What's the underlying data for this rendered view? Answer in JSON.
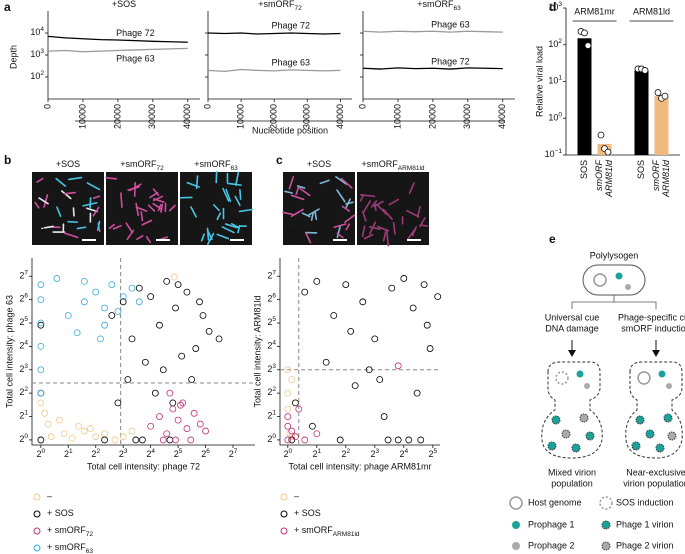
{
  "panel_labels": [
    "a",
    "b",
    "c",
    "d",
    "e"
  ],
  "panel_a": {
    "ylabel": "Depth",
    "xlabel": "Nucleotide position"
  },
  "chart_data": [
    {
      "type": "line",
      "title": {
        "text": "+SOS"
      },
      "x": [
        0,
        5000,
        10000,
        15000,
        20000,
        25000,
        30000,
        35000,
        40000
      ],
      "xlim": [
        0,
        43500
      ],
      "xticks": [
        0,
        10000,
        20000,
        30000,
        40000
      ],
      "ylim": [
        10,
        100000
      ],
      "log_scale": true,
      "yticks": [
        {
          "value": 100,
          "label": "10",
          "power": "2"
        },
        {
          "value": 1000,
          "label": "10",
          "power": "3"
        },
        {
          "value": 10000,
          "label": "10",
          "power": "4"
        }
      ],
      "series": [
        {
          "name": "Phage 72",
          "color": "#000000",
          "values": [
            7000,
            6000,
            5500,
            5000,
            4800,
            4500,
            4200,
            4000,
            3800
          ]
        },
        {
          "name": "Phage 63",
          "color": "#999999",
          "values": [
            1500,
            1600,
            1400,
            1500,
            1600,
            1700,
            1800,
            1900,
            2000
          ]
        }
      ]
    },
    {
      "type": "line",
      "title": {
        "text": "+smORF",
        "sub": "72"
      },
      "x": [
        0,
        5000,
        10000,
        15000,
        20000,
        25000,
        30000,
        35000,
        40000
      ],
      "xlim": [
        0,
        43500
      ],
      "xticks": [
        0,
        10000,
        20000,
        30000,
        40000
      ],
      "ylim": [
        10,
        100000
      ],
      "log_scale": true,
      "yticks": [
        {
          "value": 100,
          "label": "10",
          "power": "2"
        },
        {
          "value": 1000,
          "label": "10",
          "power": "3"
        },
        {
          "value": 10000,
          "label": "10",
          "power": "4"
        }
      ],
      "series": [
        {
          "name": "Phage 72",
          "color": "#000000",
          "values": [
            10000,
            9500,
            10000,
            9000,
            9500,
            10000,
            9500,
            9000,
            9500
          ]
        },
        {
          "name": "Phage 63",
          "color": "#999999",
          "values": [
            200,
            180,
            220,
            200,
            190,
            210,
            200,
            190,
            200
          ]
        }
      ]
    },
    {
      "type": "line",
      "title": {
        "text": "+smORF",
        "sub": "63"
      },
      "x": [
        0,
        5000,
        10000,
        15000,
        20000,
        25000,
        30000,
        35000,
        40000
      ],
      "xlim": [
        0,
        43500
      ],
      "xticks": [
        0,
        10000,
        20000,
        30000,
        40000
      ],
      "ylim": [
        10,
        100000
      ],
      "log_scale": true,
      "yticks": [
        {
          "value": 100,
          "label": "10",
          "power": "2"
        },
        {
          "value": 1000,
          "label": "10",
          "power": "3"
        },
        {
          "value": 10000,
          "label": "10",
          "power": "4"
        }
      ],
      "series": [
        {
          "name": "Phage 63",
          "color": "#999999",
          "values": [
            12000,
            11000,
            12000,
            11500,
            12000,
            11000,
            12000,
            11500,
            11000
          ]
        },
        {
          "name": "Phage 72",
          "color": "#000000",
          "values": [
            250,
            230,
            260,
            240,
            250,
            230,
            260,
            250,
            240
          ]
        }
      ]
    },
    {
      "type": "bar",
      "ylabel": "Relative viral load",
      "categories": [
        "ARM81mr",
        "ARM81ld"
      ],
      "ylim": [
        0.1,
        1000
      ],
      "log_scale": true,
      "yticks": [
        {
          "value": 0.1,
          "label": "10",
          "power": "−1"
        },
        {
          "value": 1,
          "label": "10",
          "power": "0"
        },
        {
          "value": 10,
          "label": "10",
          "power": "1"
        },
        {
          "value": 100,
          "label": "10",
          "power": "2"
        },
        {
          "value": 1000,
          "label": "10",
          "power": "3"
        }
      ],
      "series": [
        {
          "name": [
            "SOS"
          ],
          "color": "#000000",
          "values": [
            150,
            20
          ],
          "points": [
            [
              230,
              210,
              95
            ],
            [
              22,
              22,
              20
            ]
          ]
        },
        {
          "name": [
            "smORF",
            "ARM81ld"
          ],
          "color": "#f2b97f",
          "values": [
            0.2,
            4
          ],
          "points": [
            [
              0.35,
              0.15,
              0.12
            ],
            [
              5,
              3.5,
              4
            ]
          ]
        }
      ]
    },
    {
      "type": "scatter",
      "image_titles": [
        {
          "text": "+SOS"
        },
        {
          "text": "+smORF",
          "sub": "72"
        },
        {
          "text": "+smORF",
          "sub": "63"
        }
      ],
      "image_labels": [
        "63",
        "72"
      ],
      "xlabel": "Total cell intensity: phage 72",
      "ylabel": "Total cell intensity: phage 63",
      "xlim": [
        0.8,
        223
      ],
      "ylim": [
        0.86,
        220
      ],
      "log_scale": true,
      "xticks": [
        {
          "value": 1,
          "label": "2",
          "power": "0"
        },
        {
          "value": 2,
          "label": "2",
          "power": "1"
        },
        {
          "value": 4,
          "label": "2",
          "power": "2"
        },
        {
          "value": 8,
          "label": "2",
          "power": "3"
        },
        {
          "value": 16,
          "label": "2",
          "power": "4"
        },
        {
          "value": 32,
          "label": "2",
          "power": "5"
        },
        {
          "value": 64,
          "label": "2",
          "power": "6"
        },
        {
          "value": 128,
          "label": "2",
          "power": "7"
        }
      ],
      "yticks": [
        {
          "value": 1,
          "label": "2",
          "power": "0"
        },
        {
          "value": 2,
          "label": "2",
          "power": "1"
        },
        {
          "value": 4,
          "label": "2",
          "power": "2"
        },
        {
          "value": 8,
          "label": "2",
          "power": "3"
        },
        {
          "value": 16,
          "label": "2",
          "power": "4"
        },
        {
          "value": 32,
          "label": "2",
          "power": "5"
        },
        {
          "value": 64,
          "label": "2",
          "power": "6"
        },
        {
          "value": 128,
          "label": "2",
          "power": "7"
        }
      ],
      "thresholds": {
        "x": 7.5,
        "y": 5.4
      },
      "series": [
        {
          "name": "–",
          "color": "#f2c98a",
          "x": [
            1,
            1.3,
            1.8,
            2.2,
            3,
            4,
            5,
            6.5,
            1.1,
            1.6,
            2.6,
            3.5,
            1,
            1.2,
            8,
            10,
            29
          ],
          "values": [
            1,
            1.1,
            1.2,
            1.05,
            1.3,
            1.1,
            1.2,
            1,
            2.2,
            1.8,
            1.5,
            1.4,
            3,
            1.6,
            1.1,
            1.3,
            125
          ]
        },
        {
          "name": "+ SOS",
          "color": "#000000",
          "x": [
            6,
            8,
            10,
            12,
            16,
            20,
            24,
            30,
            40,
            50,
            60,
            70,
            9,
            14,
            18,
            22,
            28,
            35,
            45,
            11,
            13,
            26,
            1,
            1,
            1,
            5,
            7,
            32,
            55,
            90
          ],
          "values": [
            40,
            60,
            20,
            90,
            70,
            30,
            110,
            50,
            80,
            15,
            40,
            25,
            6,
            10,
            4,
            8,
            3,
            12,
            6,
            1,
            1,
            1,
            30,
            4,
            1,
            1,
            3,
            100,
            60,
            20
          ]
        },
        {
          "name": "+ smORF",
          "name_sub": "72",
          "color": "#c2307a",
          "x": [
            16,
            20,
            24,
            28,
            32,
            36,
            40,
            48,
            56,
            64,
            22,
            30,
            44,
            26,
            34
          ],
          "values": [
            1.5,
            2,
            1.2,
            2.5,
            1.8,
            3,
            1.4,
            2.2,
            1.6,
            1.3,
            1,
            1,
            1,
            4,
            2.8
          ]
        },
        {
          "name": "+ smORF",
          "name_sub": "63",
          "color": "#3aa9d8",
          "x": [
            1,
            1,
            1,
            1,
            1,
            1,
            2,
            3,
            4,
            5,
            6,
            8,
            10,
            12,
            3,
            5,
            7,
            2.5,
            1.5,
            4.5
          ],
          "values": [
            8,
            16,
            32,
            64,
            4,
            100,
            40,
            60,
            80,
            50,
            100,
            70,
            90,
            60,
            110,
            30,
            45,
            24,
            120,
            20
          ]
        }
      ]
    },
    {
      "type": "scatter",
      "image_titles": [
        {
          "text": "+SOS"
        },
        {
          "text": "+smORF",
          "sub": "ARM81ld"
        }
      ],
      "image_labels": [
        "mr",
        "ld"
      ],
      "xlabel": "Total cell intensity: phage ARM81mr",
      "ylabel": "Total cell intensity: ARM81ld",
      "xlim": [
        0.83,
        38
      ],
      "ylim": [
        0.86,
        220
      ],
      "log_scale": true,
      "xticks": [
        {
          "value": 1,
          "label": "2",
          "power": "0"
        },
        {
          "value": 2,
          "label": "2",
          "power": "1"
        },
        {
          "value": 4,
          "label": "2",
          "power": "2"
        },
        {
          "value": 8,
          "label": "2",
          "power": "3"
        },
        {
          "value": 16,
          "label": "2",
          "power": "4"
        },
        {
          "value": 32,
          "label": "2",
          "power": "5"
        }
      ],
      "yticks": [
        {
          "value": 1,
          "label": "2",
          "power": "0"
        },
        {
          "value": 2,
          "label": "2",
          "power": "1"
        },
        {
          "value": 4,
          "label": "2",
          "power": "2"
        },
        {
          "value": 8,
          "label": "2",
          "power": "3"
        },
        {
          "value": 16,
          "label": "2",
          "power": "4"
        },
        {
          "value": 32,
          "label": "2",
          "power": "5"
        },
        {
          "value": 64,
          "label": "2",
          "power": "6"
        },
        {
          "value": 128,
          "label": "2",
          "power": "7"
        }
      ],
      "thresholds": {
        "x": 1.3,
        "y": 8
      },
      "series": [
        {
          "name": "–",
          "color": "#f2c98a",
          "x": [
            1,
            1,
            1,
            1.1,
            1.05,
            1.2,
            1,
            1.1
          ],
          "values": [
            1.5,
            2.5,
            4,
            6,
            1.2,
            3,
            8,
            1.1
          ]
        },
        {
          "name": "+ SOS",
          "color": "#000000",
          "x": [
            1.5,
            2,
            3,
            4,
            6,
            8,
            12,
            16,
            20,
            28,
            36,
            2.5,
            5,
            10,
            14,
            24,
            30,
            1.2,
            1.8,
            3.5,
            7,
            9,
            18,
            22,
            26,
            1.1,
            4.5,
            11
          ],
          "values": [
            80,
            110,
            40,
            100,
            60,
            20,
            90,
            120,
            50,
            30,
            70,
            10,
            5,
            2,
            1,
            1,
            15,
            3,
            1.5,
            1,
            8,
            6,
            1,
            4,
            100,
            1,
            25,
            1
          ]
        },
        {
          "name": "+ smORF",
          "name_sub": "ARM81ld",
          "color": "#c2307a",
          "x": [
            1,
            1,
            1,
            1.1,
            1.2,
            1.3,
            1.5,
            2,
            14
          ],
          "values": [
            1,
            1.5,
            2,
            1.3,
            1.1,
            2.5,
            1,
            1.2,
            9
          ]
        }
      ]
    }
  ],
  "diagram": {
    "title": "Polylysogen",
    "left_cue": [
      "Universal cue",
      "DNA damage"
    ],
    "right_cue": [
      "Phage-specific cue",
      "smORF induction"
    ],
    "left_result": [
      "Mixed virion",
      "population"
    ],
    "right_result": [
      "Near-exclusive",
      "virion population"
    ],
    "legend": [
      "Host genome",
      "Prophage 1",
      "Prophage 2",
      "SOS induction",
      "Phage 1 virion",
      "Phage 2 virion"
    ]
  }
}
